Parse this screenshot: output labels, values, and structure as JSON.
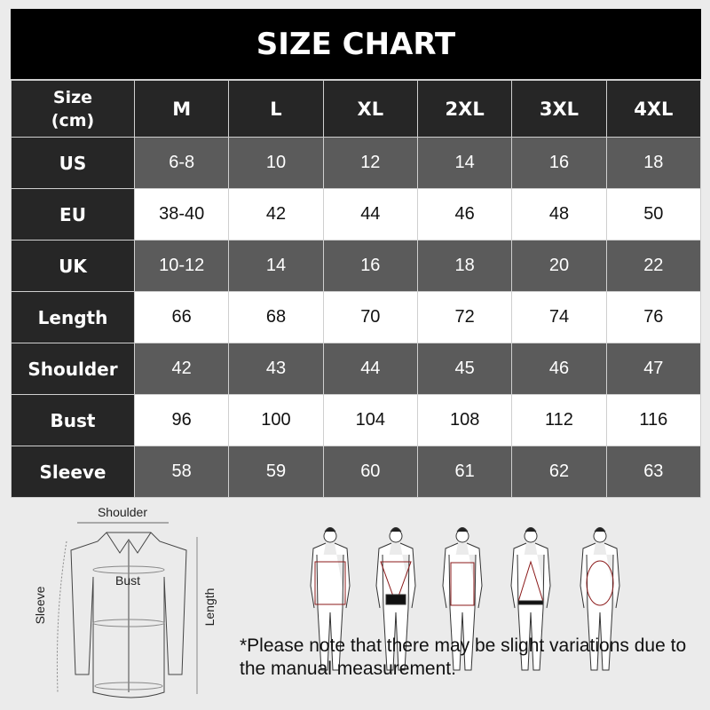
{
  "title": "SIZE CHART",
  "header": {
    "label_line1": "Size",
    "label_line2": "(cm)",
    "sizes": [
      "M",
      "L",
      "XL",
      "2XL",
      "3XL",
      "4XL"
    ]
  },
  "rows": [
    {
      "label": "US",
      "values": [
        "6-8",
        "10",
        "12",
        "14",
        "16",
        "18"
      ],
      "shade": "gray"
    },
    {
      "label": "EU",
      "values": [
        "38-40",
        "42",
        "44",
        "46",
        "48",
        "50"
      ],
      "shade": "white"
    },
    {
      "label": "UK",
      "values": [
        "10-12",
        "14",
        "16",
        "18",
        "20",
        "22"
      ],
      "shade": "gray"
    },
    {
      "label": "Length",
      "values": [
        "66",
        "68",
        "70",
        "72",
        "74",
        "76"
      ],
      "shade": "white"
    },
    {
      "label": "Shoulder",
      "values": [
        "42",
        "43",
        "44",
        "45",
        "46",
        "47"
      ],
      "shade": "gray"
    },
    {
      "label": "Bust",
      "values": [
        "96",
        "100",
        "104",
        "108",
        "112",
        "116"
      ],
      "shade": "white"
    },
    {
      "label": "Sleeve",
      "values": [
        "58",
        "59",
        "60",
        "61",
        "62",
        "63"
      ],
      "shade": "gray"
    }
  ],
  "diagram": {
    "shoulder": "Shoulder",
    "bust": "Bust",
    "sleeve": "Sleeve",
    "length": "Length"
  },
  "note": "*Please note that there may be slight variations due to the manual measurement.",
  "colors": {
    "title_bg": "#000000",
    "label_bg": "#262626",
    "gray_cell": "#5b5b5b",
    "white_cell": "#ffffff",
    "measure_line": "#8b1a1a"
  }
}
